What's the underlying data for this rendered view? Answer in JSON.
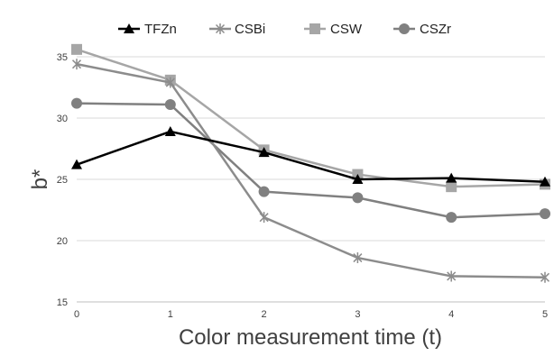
{
  "chart_data": {
    "type": "line",
    "title": "",
    "xlabel": "Color measurement time (t)",
    "ylabel": "b*",
    "x": [
      0,
      1,
      2,
      3,
      4,
      5
    ],
    "xlim": [
      0,
      5
    ],
    "ylim": [
      15,
      35
    ],
    "yticks": [
      15,
      20,
      25,
      30,
      35
    ],
    "grid": true,
    "legend_position": "top",
    "series": [
      {
        "name": "TFZn",
        "marker": "triangle",
        "color": "#000000",
        "values": [
          26.2,
          28.9,
          27.2,
          25.0,
          25.1,
          24.8
        ]
      },
      {
        "name": "CSBi",
        "marker": "asterisk",
        "color": "#8c8c8c",
        "values": [
          34.4,
          32.9,
          21.9,
          18.6,
          17.1,
          17.0
        ]
      },
      {
        "name": "CSW",
        "marker": "square",
        "color": "#a6a6a6",
        "values": [
          35.6,
          33.1,
          27.4,
          25.4,
          24.4,
          24.6
        ]
      },
      {
        "name": "CSZr",
        "marker": "circle",
        "color": "#808080",
        "values": [
          31.2,
          31.1,
          24.0,
          23.5,
          21.9,
          22.2
        ]
      }
    ]
  }
}
